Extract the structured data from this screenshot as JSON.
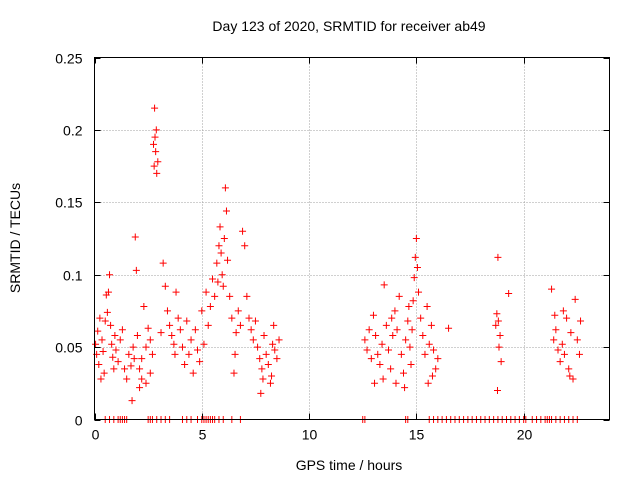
{
  "chart_data": {
    "type": "scatter",
    "title": "Day 123 of 2020, SRMTID for receiver ab49",
    "xlabel": "GPS time / hours",
    "ylabel": "SRMTID / TECUs",
    "xlim": [
      0,
      24
    ],
    "ylim": [
      0,
      0.25
    ],
    "xticks": [
      0,
      5,
      10,
      15,
      20
    ],
    "xtick_labels": [
      "0",
      "5",
      "10",
      "15",
      "20"
    ],
    "yticks": [
      0,
      0.05,
      0.1,
      0.15,
      0.2,
      0.25
    ],
    "ytick_labels": [
      "0",
      "0.05",
      "0.1",
      "0.15",
      "0.2",
      "0.25"
    ],
    "grid": true,
    "marker": "plus",
    "series": [
      {
        "name": "SRMTID",
        "color": "#ff0000",
        "points": [
          [
            0.05,
            0.052
          ],
          [
            0.1,
            0.045
          ],
          [
            0.15,
            0.061
          ],
          [
            0.2,
            0.038
          ],
          [
            0.25,
            0.07
          ],
          [
            0.3,
            0.028
          ],
          [
            0.35,
            0.055
          ],
          [
            0.4,
            0.047
          ],
          [
            0.45,
            0.032
          ],
          [
            0.5,
            0.068
          ],
          [
            0.55,
            0.086
          ],
          [
            0.6,
            0.074
          ],
          [
            0.65,
            0.088
          ],
          [
            0.7,
            0.1
          ],
          [
            0.75,
            0.065
          ],
          [
            0.8,
            0.052
          ],
          [
            0.85,
            0.043
          ],
          [
            0.9,
            0.035
          ],
          [
            0.95,
            0.058
          ],
          [
            1.0,
            0.048
          ],
          [
            1.1,
            0.04
          ],
          [
            1.2,
            0.055
          ],
          [
            1.3,
            0.062
          ],
          [
            1.4,
            0.035
          ],
          [
            1.5,
            0.028
          ],
          [
            1.6,
            0.045
          ],
          [
            1.7,
            0.037
          ],
          [
            1.75,
            0.013
          ],
          [
            1.8,
            0.05
          ],
          [
            1.85,
            0.042
          ],
          [
            1.9,
            0.126
          ],
          [
            1.95,
            0.103
          ],
          [
            2.0,
            0.058
          ],
          [
            2.1,
            0.035
          ],
          [
            2.2,
            0.042
          ],
          [
            2.3,
            0.078
          ],
          [
            2.4,
            0.05
          ],
          [
            2.5,
            0.063
          ],
          [
            2.6,
            0.032
          ],
          [
            2.7,
            0.045
          ],
          [
            2.75,
            0.19
          ],
          [
            2.8,
            0.215
          ],
          [
            2.82,
            0.195
          ],
          [
            2.85,
            0.185
          ],
          [
            2.9,
            0.17
          ],
          [
            2.95,
            0.178
          ],
          [
            2.88,
            0.2
          ],
          [
            2.78,
            0.175
          ],
          [
            2.6,
            0.055
          ],
          [
            2.4,
            0.025
          ],
          [
            2.2,
            0.028
          ],
          [
            2.1,
            0.022
          ],
          [
            3.1,
            0.06
          ],
          [
            3.2,
            0.108
          ],
          [
            3.3,
            0.092
          ],
          [
            3.4,
            0.075
          ],
          [
            3.5,
            0.065
          ],
          [
            3.6,
            0.058
          ],
          [
            3.7,
            0.052
          ],
          [
            3.75,
            0.045
          ],
          [
            3.8,
            0.088
          ],
          [
            3.9,
            0.07
          ],
          [
            4.0,
            0.062
          ],
          [
            4.1,
            0.05
          ],
          [
            4.2,
            0.038
          ],
          [
            4.3,
            0.068
          ],
          [
            4.4,
            0.045
          ],
          [
            4.5,
            0.055
          ],
          [
            4.6,
            0.032
          ],
          [
            4.7,
            0.062
          ],
          [
            4.8,
            0.048
          ],
          [
            4.9,
            0.04
          ],
          [
            5.0,
            0.075
          ],
          [
            5.1,
            0.052
          ],
          [
            5.2,
            0.088
          ],
          [
            5.3,
            0.065
          ],
          [
            5.4,
            0.078
          ],
          [
            5.5,
            0.097
          ],
          [
            5.6,
            0.085
          ],
          [
            5.7,
            0.108
          ],
          [
            5.75,
            0.095
          ],
          [
            5.8,
            0.12
          ],
          [
            5.85,
            0.133
          ],
          [
            5.9,
            0.115
          ],
          [
            5.95,
            0.1
          ],
          [
            6.0,
            0.092
          ],
          [
            6.05,
            0.125
          ],
          [
            6.1,
            0.16
          ],
          [
            6.15,
            0.144
          ],
          [
            6.2,
            0.11
          ],
          [
            6.3,
            0.085
          ],
          [
            6.4,
            0.07
          ],
          [
            6.5,
            0.032
          ],
          [
            6.55,
            0.045
          ],
          [
            6.6,
            0.06
          ],
          [
            6.7,
            0.075
          ],
          [
            6.8,
            0.065
          ],
          [
            6.9,
            0.13
          ],
          [
            7.0,
            0.12
          ],
          [
            7.1,
            0.085
          ],
          [
            7.2,
            0.07
          ],
          [
            7.3,
            0.062
          ],
          [
            7.4,
            0.055
          ],
          [
            7.5,
            0.068
          ],
          [
            7.6,
            0.05
          ],
          [
            7.7,
            0.042
          ],
          [
            7.8,
            0.035
          ],
          [
            7.9,
            0.058
          ],
          [
            8.0,
            0.045
          ],
          [
            8.1,
            0.038
          ],
          [
            8.2,
            0.025
          ],
          [
            8.3,
            0.052
          ],
          [
            8.4,
            0.048
          ],
          [
            8.5,
            0.042
          ],
          [
            8.6,
            0.055
          ],
          [
            7.75,
            0.018
          ],
          [
            7.85,
            0.028
          ],
          [
            8.25,
            0.03
          ],
          [
            8.35,
            0.065
          ],
          [
            12.6,
            0.055
          ],
          [
            12.7,
            0.048
          ],
          [
            12.8,
            0.062
          ],
          [
            12.9,
            0.042
          ],
          [
            13.0,
            0.072
          ],
          [
            13.1,
            0.058
          ],
          [
            13.2,
            0.045
          ],
          [
            13.3,
            0.038
          ],
          [
            13.4,
            0.052
          ],
          [
            13.5,
            0.093
          ],
          [
            13.6,
            0.065
          ],
          [
            13.7,
            0.048
          ],
          [
            13.8,
            0.035
          ],
          [
            13.9,
            0.058
          ],
          [
            14.0,
            0.075
          ],
          [
            14.1,
            0.062
          ],
          [
            14.2,
            0.085
          ],
          [
            14.3,
            0.045
          ],
          [
            14.4,
            0.032
          ],
          [
            14.5,
            0.055
          ],
          [
            14.6,
            0.068
          ],
          [
            14.7,
            0.05
          ],
          [
            14.75,
            0.038
          ],
          [
            14.8,
            0.062
          ],
          [
            14.85,
            0.082
          ],
          [
            14.9,
            0.098
          ],
          [
            14.95,
            0.112
          ],
          [
            15.0,
            0.125
          ],
          [
            15.05,
            0.105
          ],
          [
            15.1,
            0.088
          ],
          [
            15.2,
            0.07
          ],
          [
            15.3,
            0.058
          ],
          [
            15.4,
            0.045
          ],
          [
            15.5,
            0.078
          ],
          [
            15.6,
            0.052
          ],
          [
            15.7,
            0.065
          ],
          [
            15.8,
            0.048
          ],
          [
            15.9,
            0.035
          ],
          [
            16.0,
            0.042
          ],
          [
            16.5,
            0.063
          ],
          [
            13.05,
            0.025
          ],
          [
            13.45,
            0.028
          ],
          [
            14.05,
            0.025
          ],
          [
            14.45,
            0.022
          ],
          [
            15.55,
            0.025
          ],
          [
            15.75,
            0.03
          ],
          [
            13.85,
            0.07
          ],
          [
            14.65,
            0.078
          ],
          [
            18.7,
            0.065
          ],
          [
            18.75,
            0.073
          ],
          [
            18.8,
            0.112
          ],
          [
            18.85,
            0.05
          ],
          [
            18.9,
            0.058
          ],
          [
            18.95,
            0.04
          ],
          [
            18.78,
            0.02
          ],
          [
            18.82,
            0.068
          ],
          [
            19.3,
            0.087
          ],
          [
            21.3,
            0.09
          ],
          [
            21.4,
            0.055
          ],
          [
            21.5,
            0.062
          ],
          [
            21.6,
            0.048
          ],
          [
            21.7,
            0.04
          ],
          [
            21.8,
            0.052
          ],
          [
            21.9,
            0.045
          ],
          [
            22.0,
            0.07
          ],
          [
            22.1,
            0.035
          ],
          [
            22.2,
            0.06
          ],
          [
            22.3,
            0.028
          ],
          [
            22.4,
            0.083
          ],
          [
            22.5,
            0.055
          ],
          [
            22.6,
            0.045
          ],
          [
            22.65,
            0.068
          ],
          [
            21.45,
            0.072
          ],
          [
            21.85,
            0.075
          ],
          [
            22.15,
            0.03
          ]
        ]
      }
    ],
    "zero_points_x": [
      0.5,
      0.7,
      0.9,
      1.1,
      1.2,
      1.3,
      1.4,
      1.5,
      2.5,
      2.6,
      2.7,
      2.9,
      3.1,
      3.3,
      3.5,
      4.1,
      4.3,
      4.5,
      4.8,
      5.0,
      5.1,
      5.2,
      5.3,
      5.4,
      5.5,
      5.6,
      5.8,
      6.0,
      6.4,
      6.8,
      12.5,
      12.6,
      14.5,
      14.6,
      15.6,
      15.8,
      16.0,
      16.2,
      16.4,
      16.6,
      16.8,
      17.0,
      17.2,
      17.4,
      17.6,
      17.8,
      18.0,
      18.2,
      18.4,
      18.6,
      18.8,
      19.0,
      19.2,
      19.4,
      19.6,
      19.8,
      20.0,
      20.1,
      20.4,
      20.6,
      20.8,
      21.0,
      21.1,
      21.2,
      21.3,
      21.5,
      21.7,
      21.9,
      22.1,
      22.3,
      22.5
    ]
  }
}
